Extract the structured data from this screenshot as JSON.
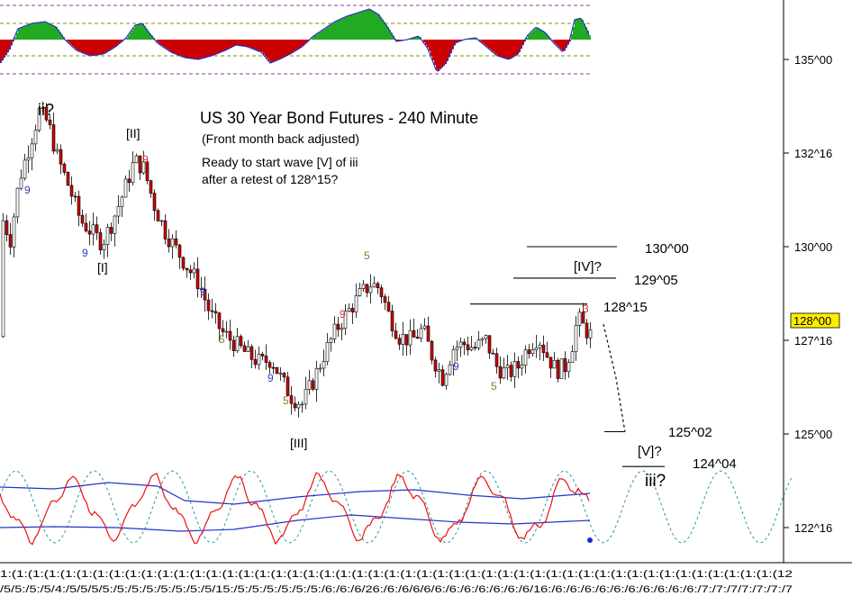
{
  "chart_data": {
    "type": "candlestick",
    "title": "US 30 Year Bond Futures - 240 Minute",
    "subtitle": "(Front month back adjusted)",
    "note_lines": [
      "Ready to start wave [V] of iii",
      "after a retest of 128^15?"
    ],
    "y_axis": {
      "side": "right",
      "ticks": [
        {
          "label": "135^00",
          "value": 135.0
        },
        {
          "label": "132^16",
          "value": 132.5
        },
        {
          "label": "130^00",
          "value": 130.0
        },
        {
          "label": "127^16",
          "value": 127.5
        },
        {
          "label": "125^00",
          "value": 125.0
        },
        {
          "label": "122^16",
          "value": 122.5
        }
      ],
      "current_price_label": "128^00",
      "current_price": 128.0
    },
    "x_axis_label_text": "1:(1:(1:(1:(1:(1:(1:(1:(1:(1:(1:(1:(1:(1:(1:(1:(1:(1:(1:(1:(1:(1:(1:(1:(1:(1:(1:(1:(1:(1:(1:(1:(1:(1:(1:(1:(1:(1:(1:(1:(1:(1:(1:(1:(1:(1:(1:(1:(12",
    "x_axis_label_text2": "/5/5:/5:/5/4:/5/5/5/5:/5:/5:/5:/5:/5:/5:/5/15:/5:/5:/5:/5:/5:/5:/6:/6:/6/26:/6:/6/6/6/6:/6:/6:/6:/6:/6:/6/16:/6:/6:/6:/6:/6:/6:/6:/6:/6:/6:/7:/7:/7/7:/7:/7:/7",
    "levels": [
      {
        "label": "130^00",
        "value": 130.0
      },
      {
        "label": "129^05",
        "value": 129.16
      },
      {
        "label": "128^15",
        "value": 128.47
      },
      {
        "label": "125^02",
        "value": 125.06
      },
      {
        "label": "124^04",
        "value": 124.13
      }
    ],
    "wave_labels": [
      {
        "text": "ii?",
        "color": "#000000"
      },
      {
        "text": "[II]",
        "color": "#000000"
      },
      {
        "text": "[I]",
        "color": "#000000"
      },
      {
        "text": "[III]",
        "color": "#000000"
      },
      {
        "text": "[IV]?",
        "color": "#000000"
      },
      {
        "text": "[V]?",
        "color": "#000000"
      },
      {
        "text": "iii?",
        "color": "#000000"
      }
    ],
    "count_labels": [
      {
        "text": "9",
        "color": "#2a3ebf"
      },
      {
        "text": "9",
        "color": "#d03030"
      },
      {
        "text": "9",
        "color": "#2a3ebf"
      },
      {
        "text": "9",
        "color": "#2a3ebf"
      },
      {
        "text": "5",
        "color": "#8a7a2a"
      },
      {
        "text": "9",
        "color": "#2a3ebf"
      },
      {
        "text": "5",
        "color": "#8a7a2a"
      },
      {
        "text": "5",
        "color": "#8a7a2a"
      },
      {
        "text": "9",
        "color": "#d03030"
      },
      {
        "text": "9",
        "color": "#2a3ebf"
      },
      {
        "text": "5",
        "color": "#8a7a2a"
      },
      {
        "text": "3",
        "color": "#d03030"
      }
    ],
    "colors": {
      "up_candle": "#ffffff",
      "down_candle": "#cc0000",
      "osc_positive": "#22aa22",
      "osc_negative": "#cc0000",
      "osc_line": "#2233cc",
      "cycle_red": "#ee1111",
      "cycle_blue": "#2233cc",
      "cycle_teal": "#2a9a9a",
      "price_tag_bg": "#ffee00",
      "dashed_guides": "#9a3aa0"
    }
  }
}
